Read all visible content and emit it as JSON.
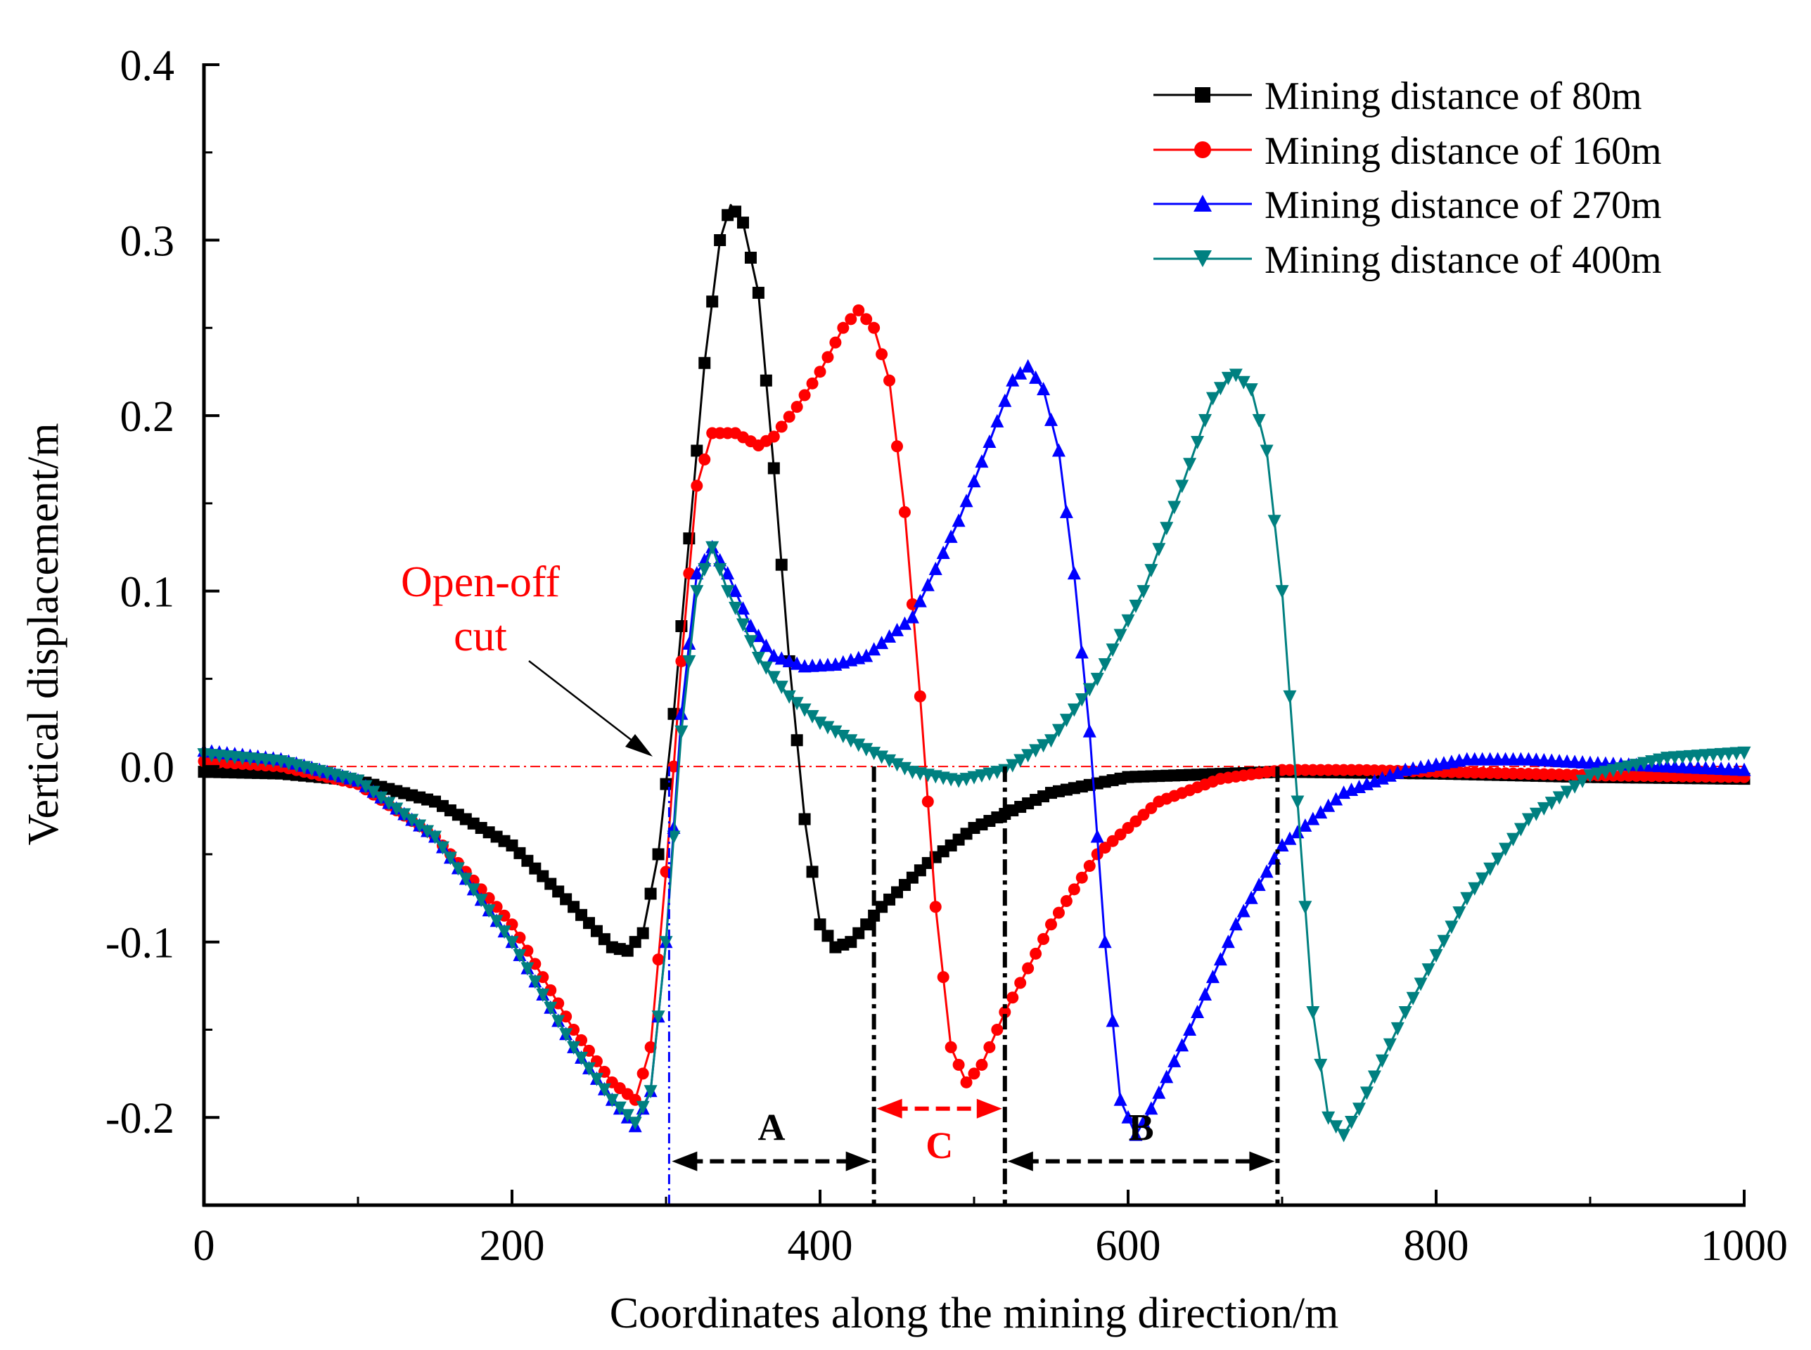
{
  "chart_data": {
    "type": "line",
    "xlabel": "Coordinates along the mining direction/m",
    "ylabel": "Vertical displacement/m",
    "xlim": [
      0,
      1000
    ],
    "ylim": [
      -0.25,
      0.4
    ],
    "x_ticks": [
      0,
      200,
      400,
      600,
      800,
      1000
    ],
    "y_ticks": [
      -0.2,
      -0.1,
      0.0,
      0.1,
      0.2,
      0.3,
      0.4
    ],
    "y_tick_labels": [
      "-0.2",
      "-0.1",
      "0.0",
      "0.1",
      "0.2",
      "0.3",
      "0.4"
    ],
    "legend_position": "top-right",
    "series": [
      {
        "name": "Mining distance of 80m",
        "color": "#000000",
        "marker": "square",
        "points": [
          [
            0,
            -0.003
          ],
          [
            50,
            -0.004
          ],
          [
            100,
            -0.008
          ],
          [
            150,
            -0.02
          ],
          [
            200,
            -0.045
          ],
          [
            240,
            -0.08
          ],
          [
            265,
            -0.103
          ],
          [
            275,
            -0.105
          ],
          [
            285,
            -0.095
          ],
          [
            295,
            -0.05
          ],
          [
            305,
            0.03
          ],
          [
            315,
            0.13
          ],
          [
            325,
            0.23
          ],
          [
            335,
            0.3
          ],
          [
            342,
            0.32
          ],
          [
            350,
            0.31
          ],
          [
            360,
            0.27
          ],
          [
            370,
            0.17
          ],
          [
            380,
            0.06
          ],
          [
            390,
            -0.03
          ],
          [
            400,
            -0.09
          ],
          [
            410,
            -0.103
          ],
          [
            420,
            -0.1
          ],
          [
            440,
            -0.08
          ],
          [
            470,
            -0.055
          ],
          [
            500,
            -0.035
          ],
          [
            550,
            -0.015
          ],
          [
            600,
            -0.006
          ],
          [
            700,
            -0.003
          ],
          [
            800,
            -0.004
          ],
          [
            900,
            -0.006
          ],
          [
            1000,
            -0.007
          ]
        ]
      },
      {
        "name": "Mining distance of 160m",
        "color": "#ff0000",
        "marker": "circle",
        "points": [
          [
            0,
            0.003
          ],
          [
            50,
            0.0
          ],
          [
            100,
            -0.01
          ],
          [
            150,
            -0.04
          ],
          [
            200,
            -0.09
          ],
          [
            240,
            -0.15
          ],
          [
            265,
            -0.18
          ],
          [
            280,
            -0.19
          ],
          [
            290,
            -0.16
          ],
          [
            300,
            -0.06
          ],
          [
            310,
            0.06
          ],
          [
            320,
            0.16
          ],
          [
            330,
            0.19
          ],
          [
            345,
            0.19
          ],
          [
            360,
            0.183
          ],
          [
            370,
            0.188
          ],
          [
            385,
            0.205
          ],
          [
            400,
            0.225
          ],
          [
            415,
            0.25
          ],
          [
            425,
            0.26
          ],
          [
            435,
            0.25
          ],
          [
            445,
            0.22
          ],
          [
            455,
            0.145
          ],
          [
            465,
            0.04
          ],
          [
            475,
            -0.08
          ],
          [
            485,
            -0.16
          ],
          [
            495,
            -0.18
          ],
          [
            505,
            -0.17
          ],
          [
            520,
            -0.14
          ],
          [
            550,
            -0.09
          ],
          [
            580,
            -0.05
          ],
          [
            620,
            -0.02
          ],
          [
            660,
            -0.007
          ],
          [
            700,
            -0.002
          ],
          [
            750,
            -0.002
          ],
          [
            800,
            -0.003
          ],
          [
            900,
            -0.005
          ],
          [
            1000,
            -0.006
          ]
        ]
      },
      {
        "name": "Mining distance of 270m",
        "color": "#0000ff",
        "marker": "triangle-up",
        "points": [
          [
            0,
            0.009
          ],
          [
            50,
            0.004
          ],
          [
            100,
            -0.008
          ],
          [
            150,
            -0.04
          ],
          [
            200,
            -0.1
          ],
          [
            240,
            -0.16
          ],
          [
            265,
            -0.19
          ],
          [
            280,
            -0.205
          ],
          [
            290,
            -0.185
          ],
          [
            300,
            -0.1
          ],
          [
            310,
            0.03
          ],
          [
            320,
            0.11
          ],
          [
            330,
            0.125
          ],
          [
            340,
            0.11
          ],
          [
            355,
            0.08
          ],
          [
            370,
            0.063
          ],
          [
            390,
            0.057
          ],
          [
            410,
            0.058
          ],
          [
            430,
            0.063
          ],
          [
            460,
            0.085
          ],
          [
            490,
            0.14
          ],
          [
            510,
            0.185
          ],
          [
            525,
            0.22
          ],
          [
            535,
            0.228
          ],
          [
            545,
            0.215
          ],
          [
            555,
            0.18
          ],
          [
            565,
            0.11
          ],
          [
            575,
            0.02
          ],
          [
            585,
            -0.1
          ],
          [
            595,
            -0.19
          ],
          [
            605,
            -0.21
          ],
          [
            615,
            -0.195
          ],
          [
            640,
            -0.15
          ],
          [
            670,
            -0.09
          ],
          [
            700,
            -0.045
          ],
          [
            740,
            -0.015
          ],
          [
            780,
            -0.002
          ],
          [
            820,
            0.004
          ],
          [
            860,
            0.004
          ],
          [
            900,
            0.002
          ],
          [
            1000,
            -0.002
          ]
        ]
      },
      {
        "name": "Mining distance of 400m",
        "color": "#008080",
        "marker": "triangle-down",
        "points": [
          [
            0,
            0.007
          ],
          [
            50,
            0.003
          ],
          [
            100,
            -0.008
          ],
          [
            150,
            -0.04
          ],
          [
            200,
            -0.1
          ],
          [
            240,
            -0.16
          ],
          [
            265,
            -0.19
          ],
          [
            280,
            -0.203
          ],
          [
            290,
            -0.185
          ],
          [
            300,
            -0.1
          ],
          [
            310,
            0.02
          ],
          [
            320,
            0.1
          ],
          [
            330,
            0.125
          ],
          [
            340,
            0.1
          ],
          [
            360,
            0.062
          ],
          [
            380,
            0.04
          ],
          [
            400,
            0.025
          ],
          [
            430,
            0.01
          ],
          [
            460,
            -0.003
          ],
          [
            490,
            -0.008
          ],
          [
            520,
            -0.002
          ],
          [
            550,
            0.015
          ],
          [
            580,
            0.05
          ],
          [
            610,
            0.1
          ],
          [
            635,
            0.16
          ],
          [
            655,
            0.21
          ],
          [
            668,
            0.225
          ],
          [
            680,
            0.215
          ],
          [
            690,
            0.18
          ],
          [
            700,
            0.1
          ],
          [
            710,
            -0.02
          ],
          [
            720,
            -0.14
          ],
          [
            730,
            -0.2
          ],
          [
            740,
            -0.21
          ],
          [
            750,
            -0.195
          ],
          [
            780,
            -0.14
          ],
          [
            820,
            -0.075
          ],
          [
            860,
            -0.03
          ],
          [
            900,
            -0.005
          ],
          [
            950,
            0.005
          ],
          [
            1000,
            0.008
          ]
        ]
      }
    ],
    "annotations": {
      "open_off_cut_line_1": "Open-off",
      "open_off_cut_line_2": "cut",
      "label_A": "A",
      "label_B": "B",
      "label_C": "C",
      "zero_line_y": 0,
      "open_off_cut_x": 302,
      "boundary_1_x": 435,
      "boundary_2_x": 520,
      "boundary_3_x": 697,
      "span_A": [
        302,
        435
      ],
      "span_C": [
        435,
        520
      ],
      "span_B": [
        520,
        697
      ]
    }
  }
}
